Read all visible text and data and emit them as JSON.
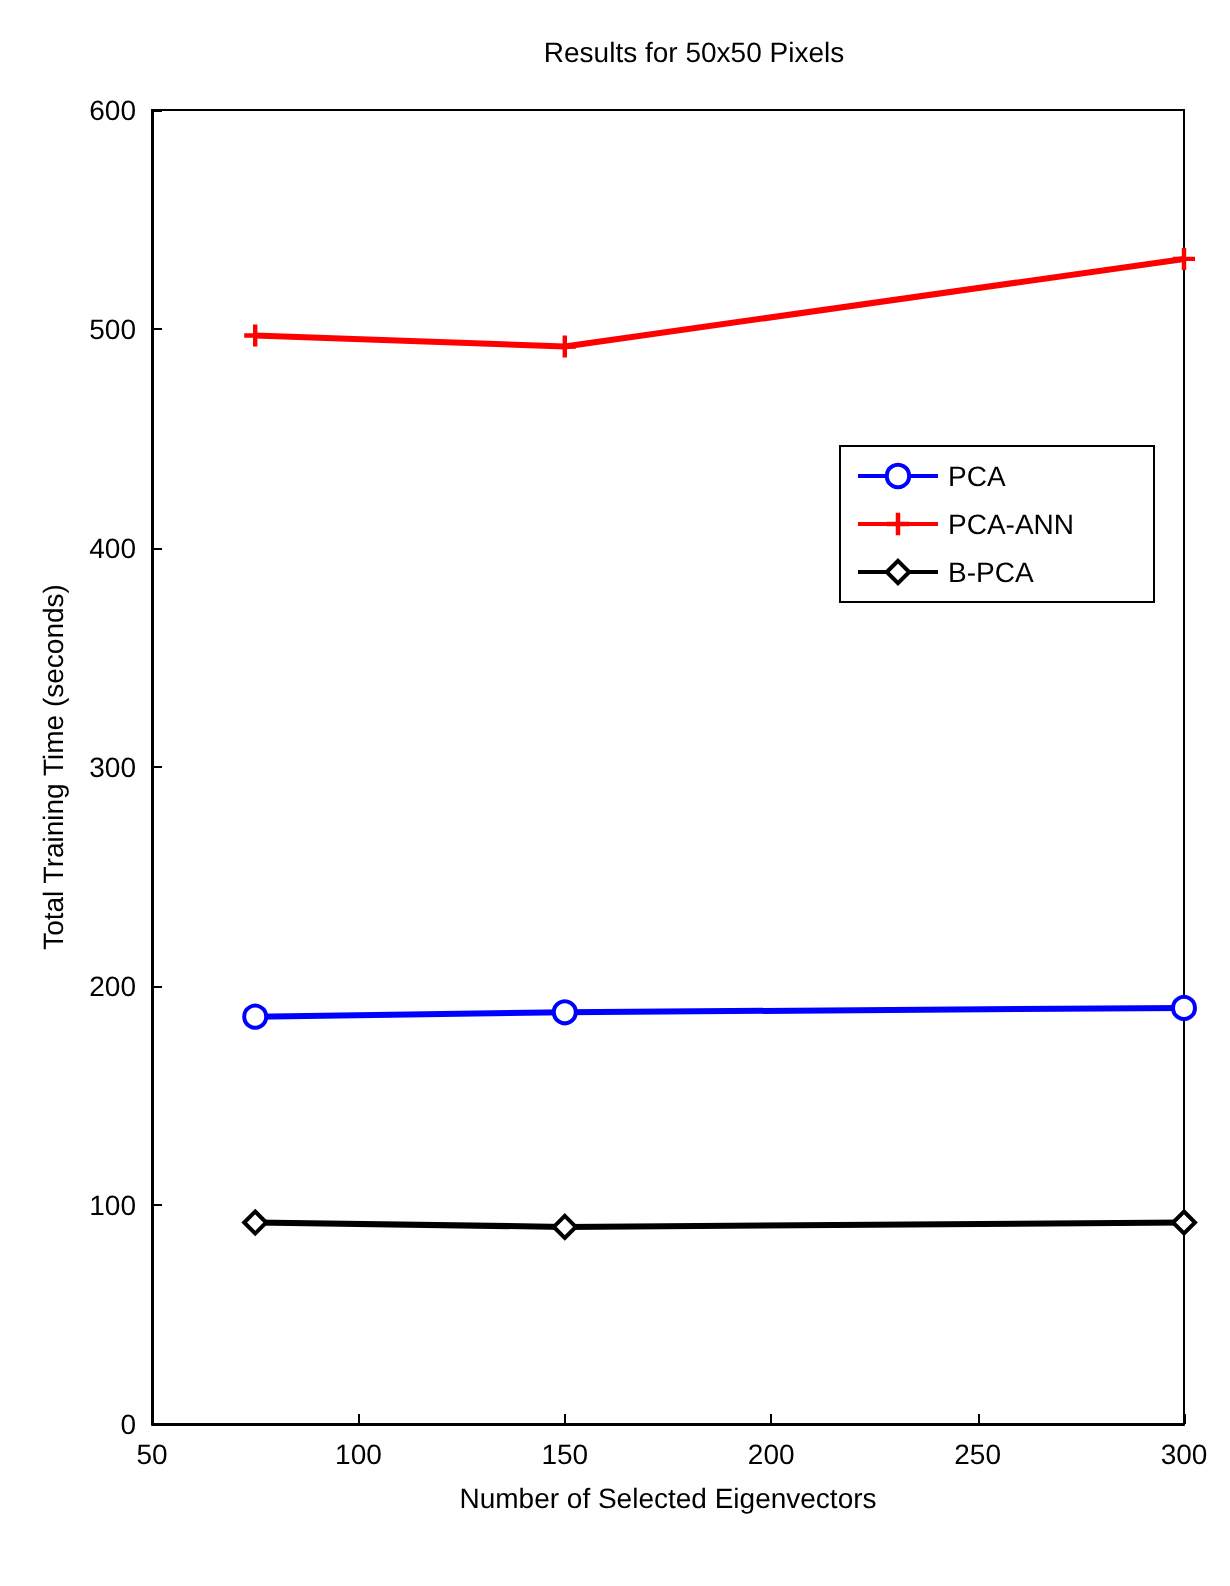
{
  "chart_data": {
    "type": "line",
    "title": "Results for 50x50 Pixels",
    "xlabel": "Number of Selected Eigenvectors",
    "ylabel": "Total Training Time (seconds)",
    "x": [
      75,
      150,
      300
    ],
    "series": [
      {
        "name": "PCA",
        "color": "#0000ff",
        "marker": "circle",
        "values": [
          186,
          188,
          190
        ]
      },
      {
        "name": "PCA-ANN",
        "color": "#ff0000",
        "marker": "cross",
        "values": [
          497,
          492,
          532
        ]
      },
      {
        "name": "B-PCA",
        "color": "#000000",
        "marker": "diamond",
        "values": [
          92,
          90,
          92
        ]
      }
    ],
    "xlim": [
      50,
      300
    ],
    "xticks": [
      50,
      100,
      150,
      200,
      250,
      300
    ],
    "ylim": [
      0,
      600
    ],
    "yticks": [
      0,
      100,
      200,
      300,
      400,
      500,
      600
    ],
    "grid": false,
    "legend": "right",
    "line_style": "solid"
  }
}
